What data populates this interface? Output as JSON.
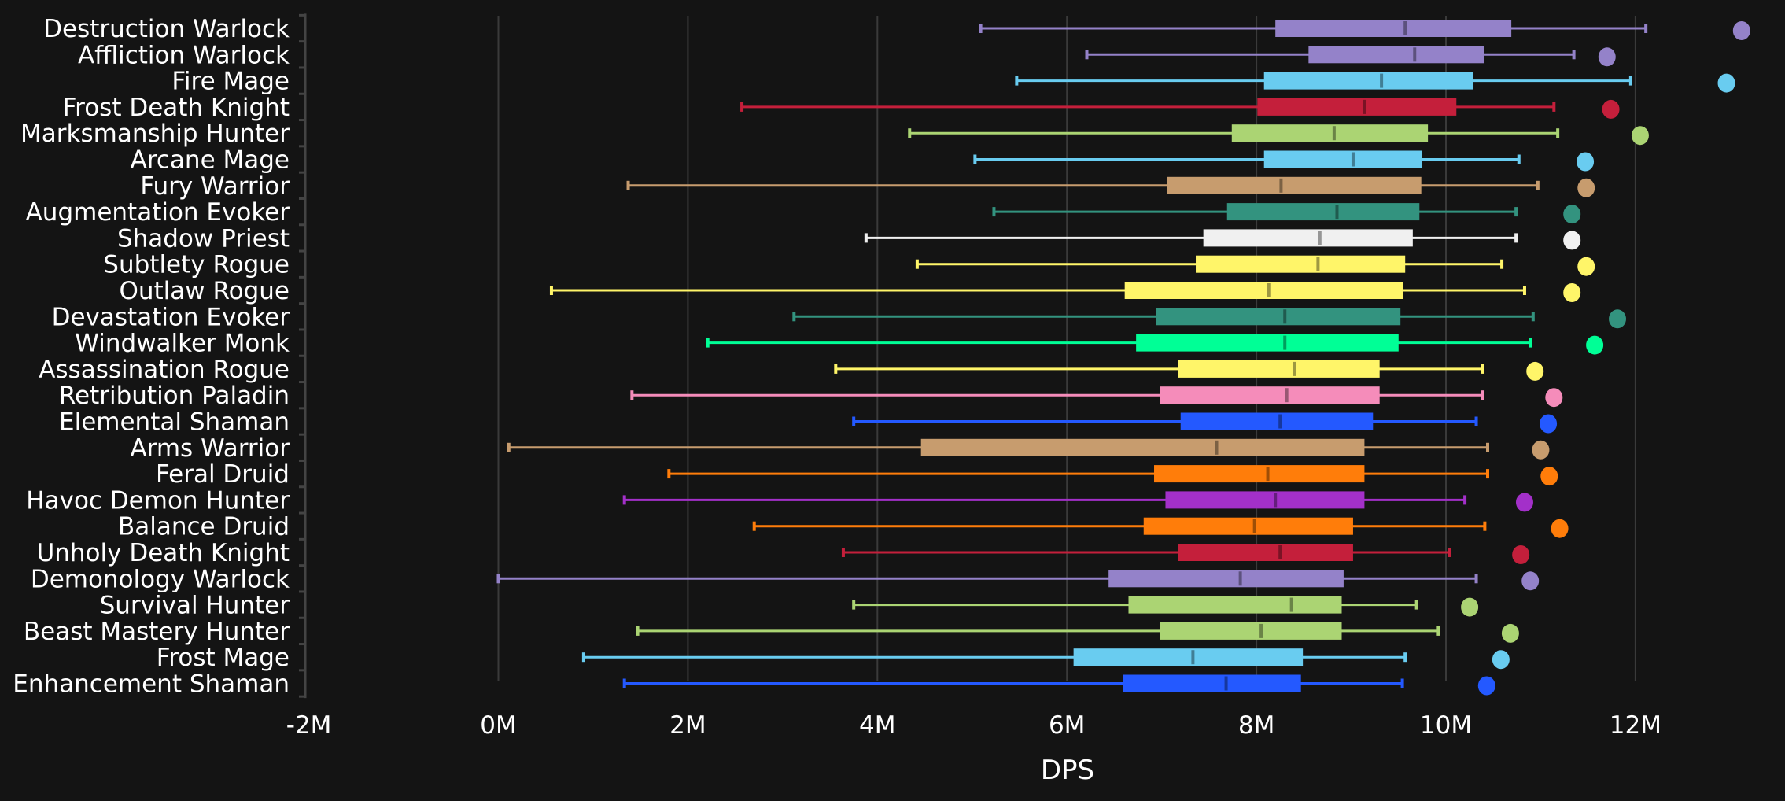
{
  "chart_data": {
    "type": "boxplot",
    "title": "",
    "xlabel": "DPS",
    "ylabel": "",
    "xlim": [
      -2,
      13.5
    ],
    "x_unit": "M",
    "grid": "vertical",
    "xticks": [
      "-2M",
      "0M",
      "2M",
      "4M",
      "6M",
      "8M",
      "10M",
      "12M"
    ],
    "xtick_values": [
      -2,
      0,
      2,
      4,
      6,
      8,
      10,
      12
    ],
    "series": [
      {
        "name": "Destruction Warlock",
        "color": "#9482C9",
        "min": 5.09,
        "q1": 8.2,
        "median": 9.57,
        "q3": 10.69,
        "max": 12.11,
        "outlier": 13.12
      },
      {
        "name": "Affliction Warlock",
        "color": "#9482C9",
        "min": 6.21,
        "q1": 8.55,
        "median": 9.67,
        "q3": 10.4,
        "max": 11.35,
        "outlier": 11.7
      },
      {
        "name": "Fire Mage",
        "color": "#69CCF0",
        "min": 5.47,
        "q1": 8.08,
        "median": 9.32,
        "q3": 10.29,
        "max": 11.95,
        "outlier": 12.96
      },
      {
        "name": "Frost Death Knight",
        "color": "#C41F3B",
        "min": 2.57,
        "q1": 8.01,
        "median": 9.14,
        "q3": 10.11,
        "max": 11.14,
        "outlier": 11.74
      },
      {
        "name": "Marksmanship Hunter",
        "color": "#ABD473",
        "min": 4.34,
        "q1": 7.74,
        "median": 8.82,
        "q3": 9.81,
        "max": 11.18,
        "outlier": 12.05
      },
      {
        "name": "Arcane Mage",
        "color": "#69CCF0",
        "min": 5.03,
        "q1": 8.08,
        "median": 9.02,
        "q3": 9.75,
        "max": 10.77,
        "outlier": 11.47
      },
      {
        "name": "Fury Warrior",
        "color": "#C79C6E",
        "min": 1.37,
        "q1": 7.06,
        "median": 8.26,
        "q3": 9.74,
        "max": 10.97,
        "outlier": 11.48
      },
      {
        "name": "Augmentation Evoker",
        "color": "#33937F",
        "min": 5.23,
        "q1": 7.69,
        "median": 8.85,
        "q3": 9.72,
        "max": 10.74,
        "outlier": 11.33
      },
      {
        "name": "Shadow Priest",
        "color": "#F0F0F0",
        "min": 3.88,
        "q1": 7.44,
        "median": 8.67,
        "q3": 9.65,
        "max": 10.74,
        "outlier": 11.33
      },
      {
        "name": "Subtlety Rogue",
        "color": "#FFF569",
        "min": 4.42,
        "q1": 7.36,
        "median": 8.65,
        "q3": 9.57,
        "max": 10.59,
        "outlier": 11.48
      },
      {
        "name": "Outlaw Rogue",
        "color": "#FFF569",
        "min": 0.56,
        "q1": 6.61,
        "median": 8.13,
        "q3": 9.55,
        "max": 10.83,
        "outlier": 11.33
      },
      {
        "name": "Devastation Evoker",
        "color": "#33937F",
        "min": 3.12,
        "q1": 6.94,
        "median": 8.3,
        "q3": 9.52,
        "max": 10.92,
        "outlier": 11.81
      },
      {
        "name": "Windwalker Monk",
        "color": "#00FF96",
        "min": 2.21,
        "q1": 6.73,
        "median": 8.3,
        "q3": 9.5,
        "max": 10.89,
        "outlier": 11.57
      },
      {
        "name": "Assassination Rogue",
        "color": "#FFF569",
        "min": 3.56,
        "q1": 7.17,
        "median": 8.4,
        "q3": 9.3,
        "max": 10.39,
        "outlier": 10.94
      },
      {
        "name": "Retribution Paladin",
        "color": "#F58CBA",
        "min": 1.41,
        "q1": 6.98,
        "median": 8.32,
        "q3": 9.3,
        "max": 10.39,
        "outlier": 11.14
      },
      {
        "name": "Elemental Shaman",
        "color": "#2459FF",
        "min": 3.75,
        "q1": 7.2,
        "median": 8.25,
        "q3": 9.23,
        "max": 10.32,
        "outlier": 11.08
      },
      {
        "name": "Arms Warrior",
        "color": "#C79C6E",
        "min": 0.11,
        "q1": 4.46,
        "median": 7.58,
        "q3": 9.14,
        "max": 10.44,
        "outlier": 11.0
      },
      {
        "name": "Feral Druid",
        "color": "#FF7D0A",
        "min": 1.8,
        "q1": 6.92,
        "median": 8.12,
        "q3": 9.14,
        "max": 10.44,
        "outlier": 11.09
      },
      {
        "name": "Havoc Demon Hunter",
        "color": "#A330C9",
        "min": 1.33,
        "q1": 7.04,
        "median": 8.2,
        "q3": 9.14,
        "max": 10.2,
        "outlier": 10.83
      },
      {
        "name": "Balance Druid",
        "color": "#FF7D0A",
        "min": 2.7,
        "q1": 6.81,
        "median": 7.98,
        "q3": 9.02,
        "max": 10.41,
        "outlier": 11.2
      },
      {
        "name": "Unholy Death Knight",
        "color": "#C41F3B",
        "min": 3.64,
        "q1": 7.17,
        "median": 8.25,
        "q3": 9.02,
        "max": 10.04,
        "outlier": 10.79
      },
      {
        "name": "Demonology Warlock",
        "color": "#9482C9",
        "min": 0.0,
        "q1": 6.44,
        "median": 7.83,
        "q3": 8.92,
        "max": 10.32,
        "outlier": 10.89
      },
      {
        "name": "Survival Hunter",
        "color": "#ABD473",
        "min": 3.75,
        "q1": 6.65,
        "median": 8.37,
        "q3": 8.9,
        "max": 9.69,
        "outlier": 10.25
      },
      {
        "name": "Beast Mastery Hunter",
        "color": "#ABD473",
        "min": 1.47,
        "q1": 6.98,
        "median": 8.05,
        "q3": 8.9,
        "max": 9.92,
        "outlier": 10.68
      },
      {
        "name": "Frost Mage",
        "color": "#69CCF0",
        "min": 0.9,
        "q1": 6.07,
        "median": 7.33,
        "q3": 8.49,
        "max": 9.57,
        "outlier": 10.58
      },
      {
        "name": "Enhancement Shaman",
        "color": "#2459FF",
        "min": 1.33,
        "q1": 6.59,
        "median": 7.68,
        "q3": 8.47,
        "max": 9.54,
        "outlier": 10.43
      }
    ]
  },
  "colors": {
    "background": "#141414",
    "grid": "#3a3a3a",
    "text": "#ffffff",
    "axis": "#444444"
  }
}
